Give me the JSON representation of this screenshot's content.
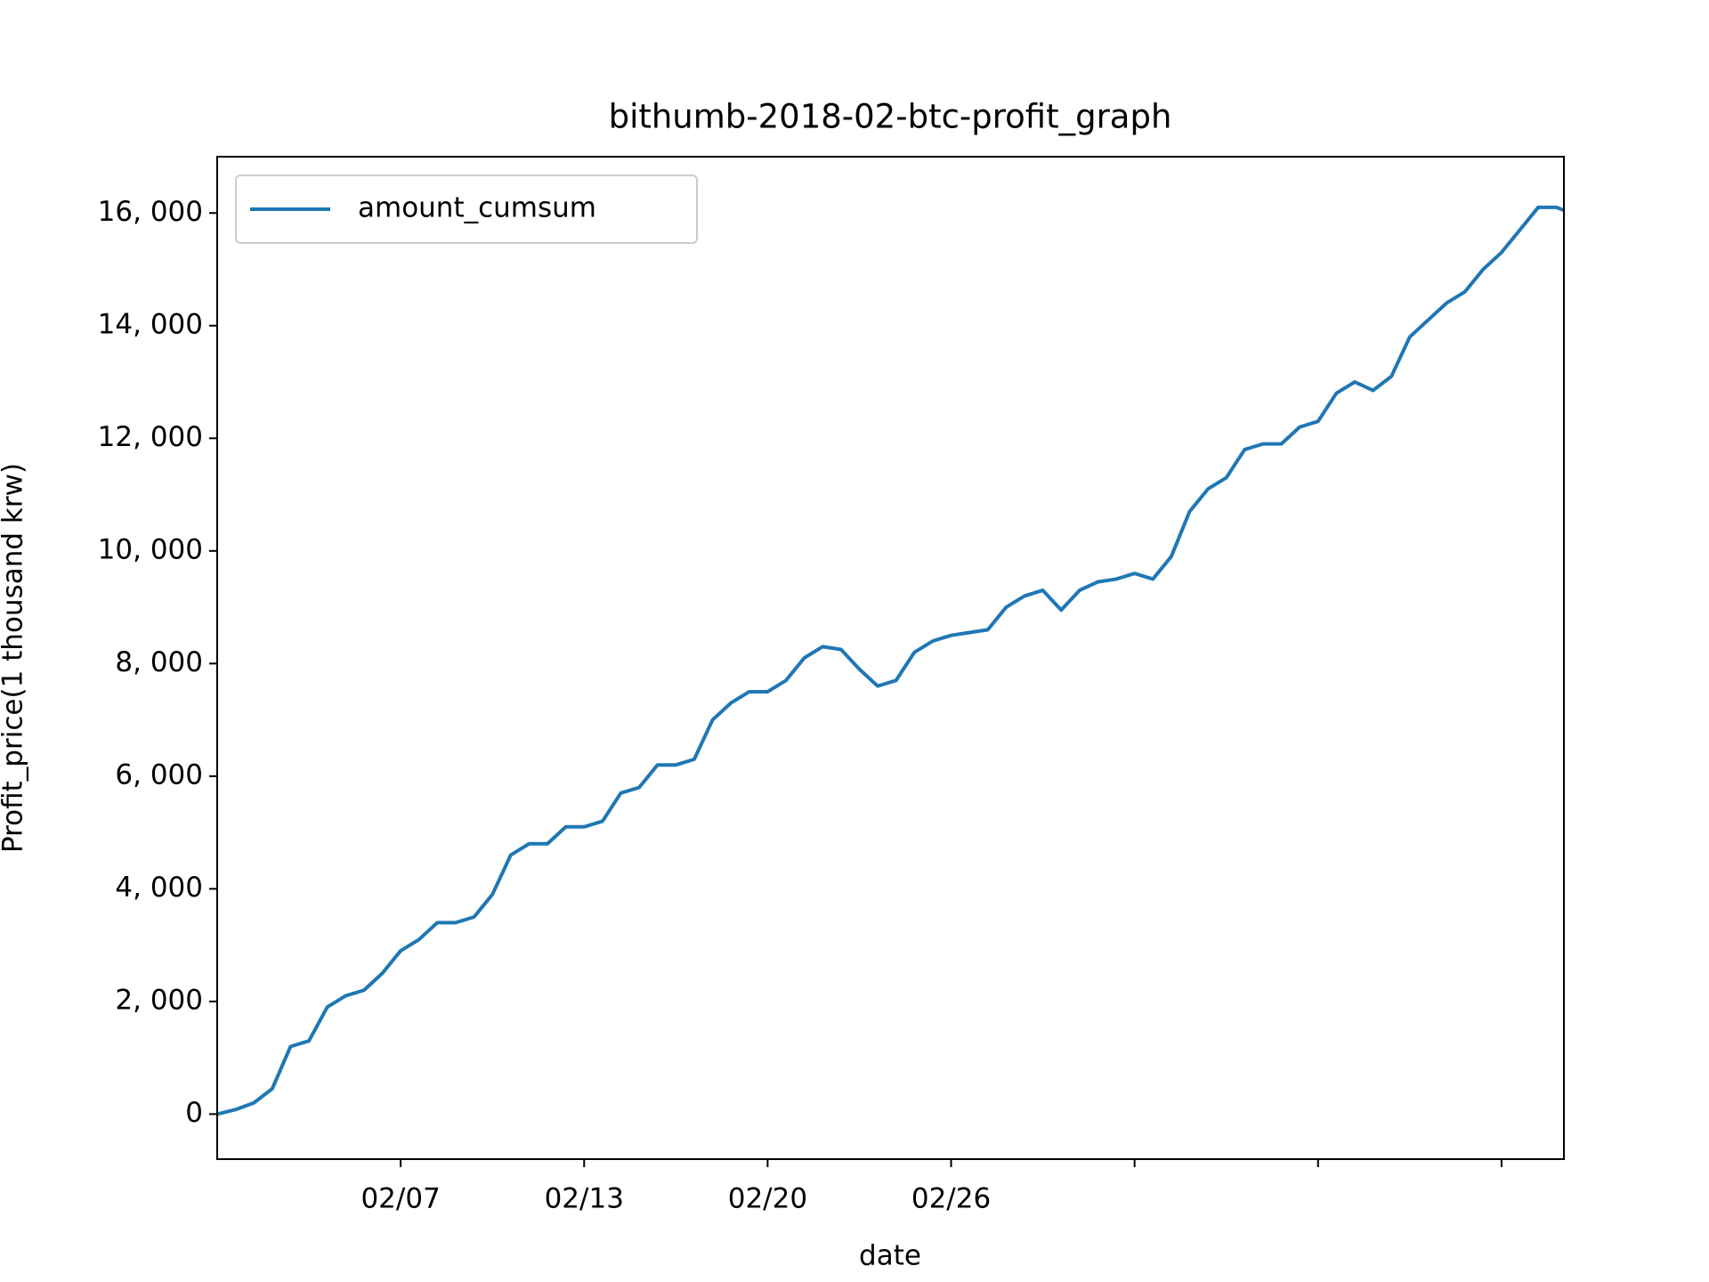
{
  "chart_data": {
    "type": "line",
    "title": "bithumb-2018-02-btc-profit_graph",
    "xlabel": "date",
    "ylabel": "Profit_price(1 thousand krw)",
    "x": [
      0,
      100,
      200,
      300,
      400,
      500,
      600,
      700,
      800,
      900,
      1000,
      1100,
      1200,
      1300,
      1400,
      1500,
      1600,
      1700,
      1800,
      1900,
      2000,
      2100,
      2200,
      2300,
      2400,
      2500,
      2600,
      2700,
      2800,
      2900,
      3000,
      3100,
      3200,
      3300,
      3400,
      3500,
      3600,
      3700,
      3800,
      3900,
      4000,
      4100,
      4200,
      4300,
      4400,
      4500,
      4600,
      4700,
      4800,
      4900,
      5000,
      5100,
      5200,
      5300,
      5400,
      5500,
      5600,
      5700,
      5800,
      5900,
      6000,
      6100,
      6200,
      6300,
      6400,
      6500,
      6600,
      6700,
      6800,
      6900,
      7000,
      7100,
      7200,
      7300,
      7340
    ],
    "series": [
      {
        "name": "amount_cumsum",
        "color": "#1f77b4",
        "values": [
          0,
          80,
          200,
          450,
          1200,
          1300,
          1900,
          2100,
          2200,
          2500,
          2900,
          3100,
          3400,
          3400,
          3500,
          3900,
          4600,
          4800,
          4800,
          5100,
          5100,
          5200,
          5700,
          5800,
          6200,
          6200,
          6300,
          7000,
          7300,
          7500,
          7500,
          7700,
          8100,
          8300,
          8250,
          7900,
          7600,
          7700,
          8200,
          8400,
          8500,
          8550,
          8600,
          9000,
          9200,
          9300,
          8950,
          9300,
          9450,
          9500,
          9600,
          9500,
          9900,
          10700,
          11100,
          11300,
          11800,
          11900,
          11900,
          12200,
          12300,
          12800,
          13000,
          12850,
          13100,
          13800,
          14100,
          14400,
          14600,
          15000,
          15300,
          15700,
          16100,
          16100,
          16050
        ]
      }
    ],
    "xlim": [
      0,
      7340
    ],
    "xticks": [
      {
        "value": 1000,
        "label": "02/07"
      },
      {
        "value": 2000,
        "label": "02/13"
      },
      {
        "value": 3000,
        "label": "02/20"
      },
      {
        "value": 4000,
        "label": "02/26"
      },
      {
        "value": 5000,
        "label": null
      },
      {
        "value": 6000,
        "label": null
      },
      {
        "value": 7000,
        "label": null
      }
    ],
    "ylim": [
      -800,
      17000
    ],
    "yticks": [
      0,
      {
        "value": 2000,
        "label": "2, 000"
      },
      {
        "value": 4000,
        "label": "4, 000"
      },
      {
        "value": 6000,
        "label": "6, 000"
      },
      {
        "value": 8000,
        "label": "8, 000"
      },
      {
        "value": 10000,
        "label": "10, 000"
      },
      {
        "value": 12000,
        "label": "12, 000"
      },
      {
        "value": 14000,
        "label": "14, 000"
      },
      {
        "value": 16000,
        "label": "16, 000"
      }
    ],
    "grid": false,
    "legend": "upper left"
  }
}
